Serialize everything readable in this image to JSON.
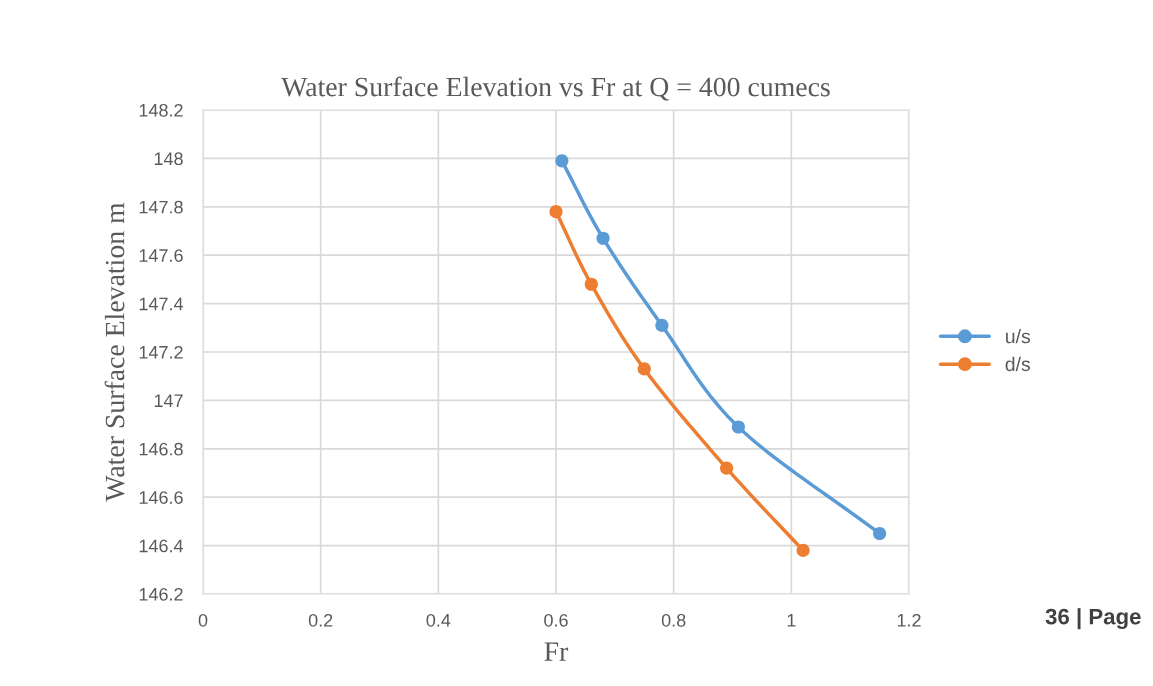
{
  "chart_data": {
    "type": "line",
    "title": "Water Surface Elevation vs Fr at Q = 400 cumecs",
    "xlabel": "Fr",
    "ylabel": "Water Surface Elevation m",
    "series": [
      {
        "name": "u/s",
        "color": "#5b9bd5",
        "x": [
          0.61,
          0.68,
          0.78,
          0.91,
          1.15
        ],
        "values": [
          147.99,
          147.67,
          147.31,
          146.89,
          146.45
        ]
      },
      {
        "name": "d/s",
        "color": "#ed7d31",
        "x": [
          0.6,
          0.66,
          0.75,
          0.89,
          1.02
        ],
        "values": [
          147.78,
          147.48,
          147.13,
          146.72,
          146.38
        ]
      }
    ],
    "xlim": [
      0,
      1.2
    ],
    "xticks": [
      0,
      0.2,
      0.4,
      0.6,
      0.8,
      1,
      1.2
    ],
    "ylim": [
      146.2,
      148.2
    ],
    "yticks": [
      146.2,
      146.4,
      146.6,
      146.8,
      147,
      147.2,
      147.4,
      147.6,
      147.8,
      148,
      148.2
    ],
    "grid": true,
    "legend": "right",
    "marker": "circle",
    "line_style": "solid",
    "annotations": [
      "36 | Page"
    ]
  }
}
